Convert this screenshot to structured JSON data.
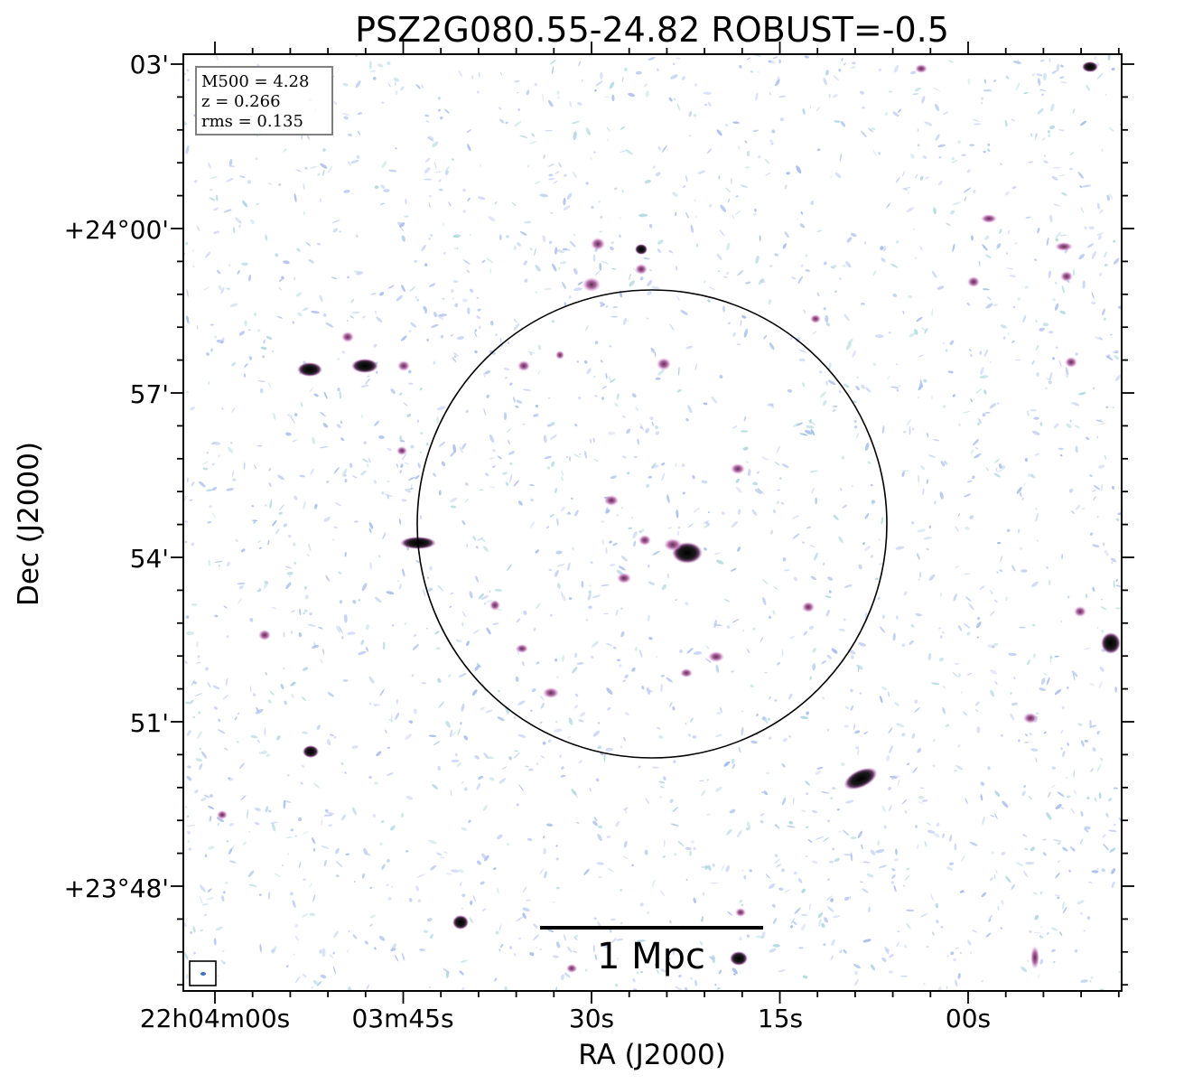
{
  "title": "PSZ2G080.55-24.82 ROBUST=-0.5",
  "info_box": {
    "lines": [
      "M500 = 4.28",
      "z = 0.266",
      "rms = 0.135"
    ]
  },
  "scale_bar": {
    "label": "1 Mpc"
  },
  "axes": {
    "xlabel": "RA (J2000)",
    "ylabel": "Dec (J2000)",
    "xticks": [
      "22h04m00s",
      "03m45s",
      "30s",
      "15s",
      "00s"
    ],
    "yticks": [
      "03'",
      "+24°00'",
      "57'",
      "54'",
      "51'",
      "+23°48'"
    ]
  },
  "colors": {
    "noise_blue": "#9fb6ea",
    "noise_cyan": "#a8d4dc",
    "source_magenta": "#c47fc4",
    "source_core": "#000000"
  }
}
